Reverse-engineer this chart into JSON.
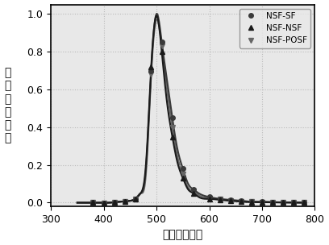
{
  "title": "",
  "xlabel": "波长（纳米）",
  "ylabel": "电\n致\n发\n光\n强\n度",
  "xlim": [
    300,
    800
  ],
  "ylim": [
    -0.02,
    1.05
  ],
  "xticks": [
    300,
    400,
    500,
    600,
    700,
    800
  ],
  "yticks": [
    0.0,
    0.2,
    0.4,
    0.6,
    0.8,
    1.0
  ],
  "series": {
    "NSF-SF": {
      "x": [
        350,
        370,
        390,
        410,
        430,
        450,
        460,
        470,
        480,
        490,
        500,
        510,
        520,
        530,
        540,
        550,
        560,
        570,
        580,
        600,
        620,
        640,
        660,
        680,
        700,
        720,
        740,
        760,
        780
      ],
      "y": [
        0.0,
        0.0,
        0.0,
        0.0,
        0.005,
        0.01,
        0.02,
        0.05,
        0.18,
        0.7,
        1.0,
        0.85,
        0.65,
        0.45,
        0.28,
        0.18,
        0.1,
        0.07,
        0.05,
        0.03,
        0.02,
        0.015,
        0.01,
        0.005,
        0.005,
        0.003,
        0.002,
        0.001,
        0.0
      ],
      "color": "#3a3a3a",
      "marker": "o",
      "markersize": 4,
      "linewidth": 1.5,
      "zorder": 2,
      "marker_x": [
        380,
        400,
        420,
        440,
        460,
        490,
        510,
        530,
        550,
        570,
        600,
        620,
        640,
        660,
        680,
        700,
        720,
        740,
        760,
        780
      ]
    },
    "NSF-NSF": {
      "x": [
        350,
        370,
        390,
        410,
        430,
        450,
        460,
        470,
        480,
        490,
        500,
        510,
        520,
        530,
        540,
        550,
        560,
        570,
        580,
        600,
        620,
        640,
        660,
        680,
        700,
        720,
        740,
        760,
        780
      ],
      "y": [
        0.0,
        0.0,
        0.0,
        0.0,
        0.005,
        0.01,
        0.02,
        0.05,
        0.2,
        0.72,
        0.99,
        0.8,
        0.53,
        0.35,
        0.21,
        0.13,
        0.07,
        0.05,
        0.03,
        0.02,
        0.015,
        0.01,
        0.005,
        0.003,
        0.003,
        0.002,
        0.001,
        0.001,
        0.0
      ],
      "color": "#1a1a1a",
      "marker": "^",
      "markersize": 4,
      "linewidth": 1.5,
      "zorder": 3,
      "marker_x": [
        380,
        400,
        420,
        440,
        460,
        490,
        510,
        530,
        550,
        570,
        600,
        620,
        640,
        660,
        680,
        700,
        720,
        740,
        760,
        780
      ]
    },
    "NSF-POSF": {
      "x": [
        350,
        370,
        390,
        410,
        430,
        450,
        460,
        470,
        480,
        490,
        500,
        510,
        520,
        530,
        540,
        550,
        560,
        570,
        580,
        600,
        620,
        640,
        660,
        680,
        700,
        720,
        740,
        760,
        780
      ],
      "y": [
        0.0,
        0.0,
        0.0,
        0.0,
        0.005,
        0.01,
        0.02,
        0.05,
        0.15,
        0.68,
        0.97,
        0.83,
        0.6,
        0.4,
        0.24,
        0.15,
        0.08,
        0.06,
        0.04,
        0.025,
        0.018,
        0.012,
        0.008,
        0.005,
        0.003,
        0.002,
        0.001,
        0.001,
        0.0
      ],
      "color": "#666666",
      "marker": "v",
      "markersize": 4,
      "linewidth": 1.5,
      "zorder": 1,
      "marker_x": [
        380,
        400,
        420,
        440,
        460,
        490,
        510,
        530,
        550,
        570,
        600,
        620,
        640,
        660,
        680,
        700,
        720,
        740,
        760,
        780
      ]
    }
  },
  "grid": true,
  "grid_color": "#bbbbbb",
  "grid_linestyle": ":",
  "grid_linewidth": 0.8,
  "bg_color": "#e8e8e8",
  "legend_loc": "upper right",
  "legend_fontsize": 7.5,
  "tick_fontsize": 9,
  "label_fontsize": 10,
  "ylabel_fontsize": 10
}
